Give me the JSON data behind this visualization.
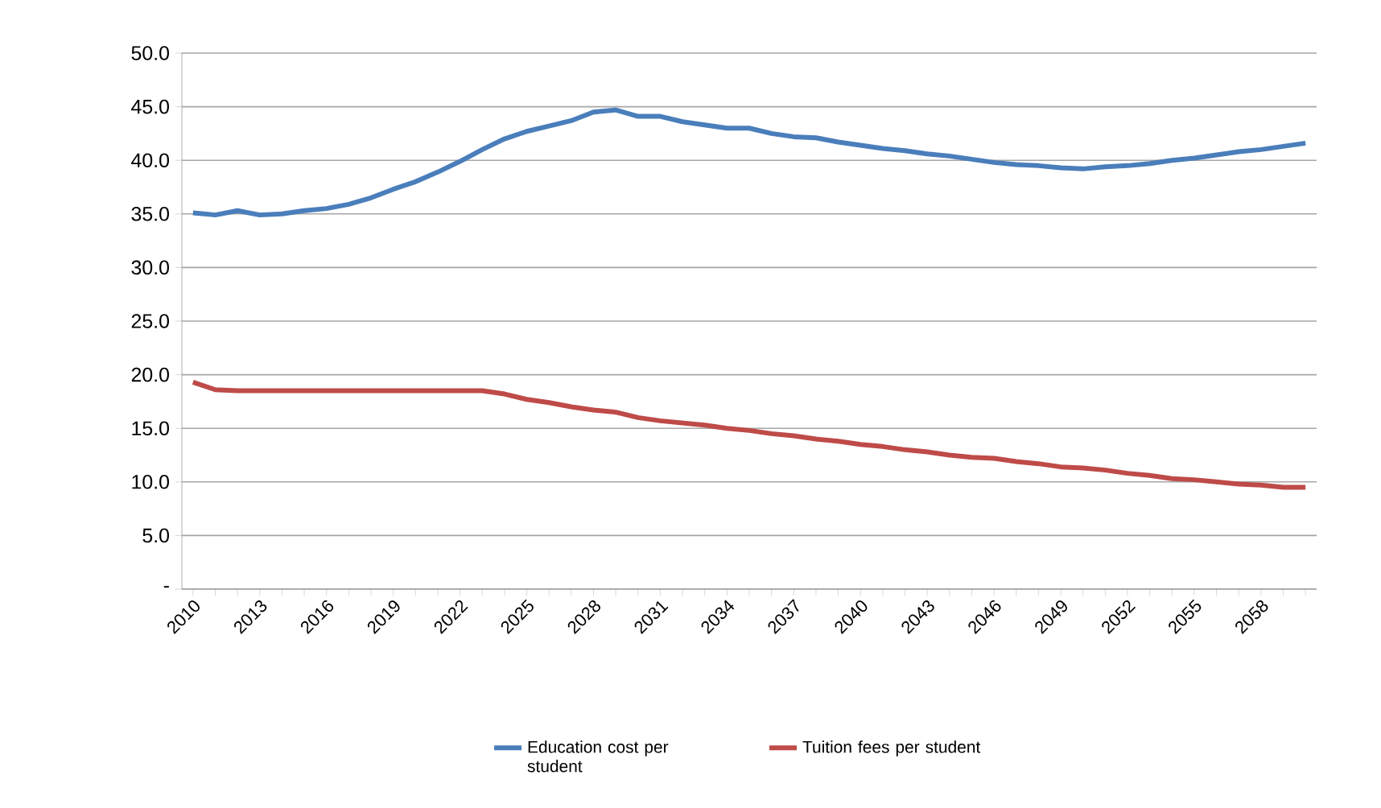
{
  "chart_data": {
    "type": "line",
    "categories": [
      "2010",
      null,
      null,
      "2013",
      null,
      null,
      "2016",
      null,
      null,
      "2019",
      null,
      null,
      "2022",
      null,
      null,
      "2025",
      null,
      null,
      "2028",
      null,
      null,
      "2031",
      null,
      null,
      "2034",
      null,
      null,
      "2037",
      null,
      null,
      "2040",
      null,
      null,
      "2043",
      null,
      null,
      "2046",
      null,
      null,
      "2049",
      null,
      null,
      "2052",
      null,
      null,
      "2055",
      null,
      null,
      "2058",
      null,
      null
    ],
    "series": [
      {
        "name": "Education cost per student",
        "color": "#4a7ebb",
        "values": [
          35.1,
          34.9,
          35.3,
          34.9,
          35.0,
          35.3,
          35.5,
          35.9,
          36.5,
          37.3,
          38.0,
          38.9,
          39.9,
          41.0,
          42.0,
          42.7,
          43.2,
          43.7,
          44.5,
          44.7,
          44.1,
          44.1,
          43.6,
          43.3,
          43.0,
          43.0,
          42.5,
          42.2,
          42.1,
          41.7,
          41.4,
          41.1,
          40.9,
          40.6,
          40.4,
          40.1,
          39.8,
          39.6,
          39.5,
          39.3,
          39.2,
          39.4,
          39.5,
          39.7,
          40.0,
          40.2,
          40.5,
          40.8,
          41.0,
          41.3,
          41.6
        ]
      },
      {
        "name": "Tuition fees per student",
        "color": "#be4b48",
        "values": [
          19.3,
          18.6,
          18.5,
          18.5,
          18.5,
          18.5,
          18.5,
          18.5,
          18.5,
          18.5,
          18.5,
          18.5,
          18.5,
          18.5,
          18.2,
          17.7,
          17.4,
          17.0,
          16.7,
          16.5,
          16.0,
          15.7,
          15.5,
          15.3,
          15.0,
          14.8,
          14.5,
          14.3,
          14.0,
          13.8,
          13.5,
          13.3,
          13.0,
          12.8,
          12.5,
          12.3,
          12.2,
          11.9,
          11.7,
          11.4,
          11.3,
          11.1,
          10.8,
          10.6,
          10.3,
          10.2,
          10.0,
          9.8,
          9.7,
          9.5,
          9.5
        ]
      }
    ],
    "ylim": [
      0,
      50
    ],
    "yticks": [
      {
        "value": 0,
        "label": "-"
      },
      {
        "value": 5,
        "label": "5.0"
      },
      {
        "value": 10,
        "label": "10.0"
      },
      {
        "value": 15,
        "label": "15.0"
      },
      {
        "value": 20,
        "label": "20.0"
      },
      {
        "value": 25,
        "label": "25.0"
      },
      {
        "value": 30,
        "label": "30.0"
      },
      {
        "value": 35,
        "label": "35.0"
      },
      {
        "value": 40,
        "label": "40.0"
      },
      {
        "value": 45,
        "label": "45.0"
      },
      {
        "value": 50,
        "label": "50.0"
      }
    ],
    "grid": "y",
    "legend": "bottom",
    "line_style": "solid"
  }
}
